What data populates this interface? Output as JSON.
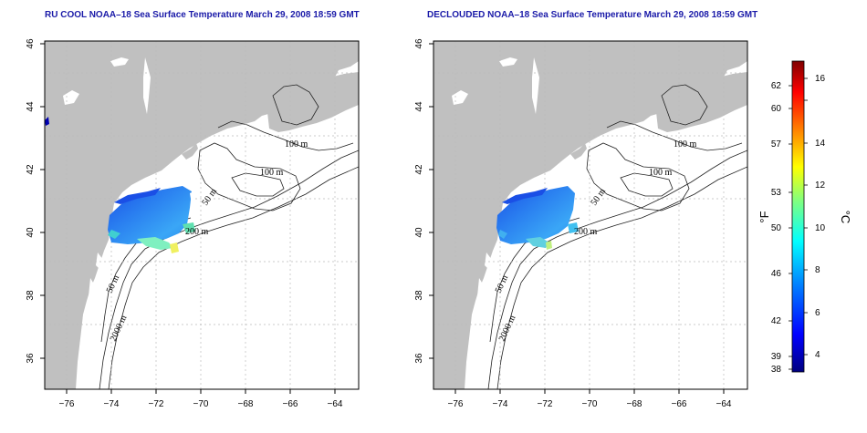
{
  "maps": [
    {
      "id": "left",
      "title": "RU COOL NOAA–18 Sea Surface Temperature March 29, 2008 18:59 GMT",
      "contour_labels": [
        "100 m",
        "100 m",
        "50 m",
        "200 m",
        "50 m",
        "2000 m"
      ]
    },
    {
      "id": "right",
      "title": "DECLOUDED NOAA–18 Sea Surface Temperature March 29, 2008 18:59 GMT",
      "contour_labels": [
        "100 m",
        "100 m",
        "50 m",
        "200 m",
        "50 m",
        "2000 m"
      ]
    }
  ],
  "axes": {
    "lon_ticks": [
      "−76",
      "−74",
      "−72",
      "−70",
      "−68",
      "−66",
      "−64"
    ],
    "lat_ticks": [
      "36",
      "38",
      "40",
      "42",
      "44",
      "46"
    ],
    "lon_range": [
      -77,
      -63
    ],
    "lat_range": [
      35,
      46
    ]
  },
  "colorbar": {
    "fahrenheit_label": "°F",
    "celsius_label": "°C",
    "fahrenheit_ticks": [
      "62",
      "60",
      "57",
      "53",
      "50",
      "46",
      "42",
      "39",
      "38"
    ],
    "celsius_ticks": [
      "16",
      "14",
      "12",
      "10",
      "8",
      "6",
      "4"
    ],
    "celsius_range": [
      3,
      17.5
    ],
    "colors": [
      "#00007f",
      "#0000ff",
      "#0080ff",
      "#00ffff",
      "#80ff80",
      "#ffff00",
      "#ff8000",
      "#ff0000",
      "#7f0000"
    ]
  },
  "colors": {
    "land": "#c0c0c0",
    "ocean": "#ffffff",
    "title": "#1a1aa8"
  }
}
